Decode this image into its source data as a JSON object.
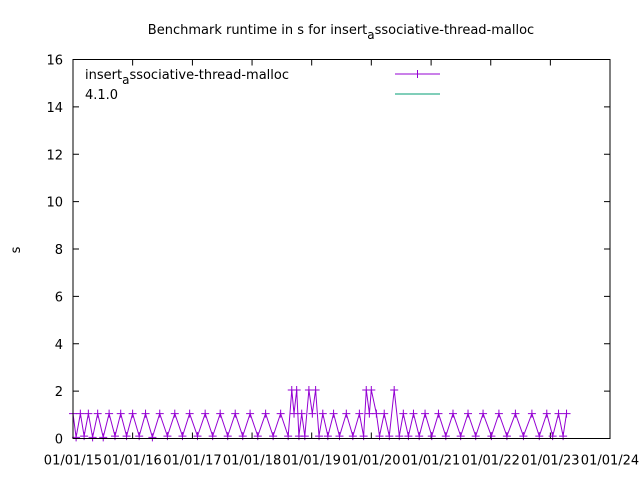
{
  "chart_data": {
    "type": "line",
    "title_main": "Benchmark runtime in s for insert",
    "title_sub": "a",
    "title_rest": "ssociative-thread-malloc",
    "ylabel": "s",
    "ylim": [
      0,
      16
    ],
    "y_ticks": [
      0,
      2,
      4,
      6,
      8,
      10,
      12,
      14,
      16
    ],
    "x_range": [
      "2015-01-01",
      "2024-01-01"
    ],
    "x_ticks": [
      {
        "date": "2015-01-01",
        "label": "01/01/15"
      },
      {
        "date": "2016-01-01",
        "label": "01/01/16"
      },
      {
        "date": "2017-01-01",
        "label": "01/01/17"
      },
      {
        "date": "2018-01-01",
        "label": "01/01/18"
      },
      {
        "date": "2019-01-01",
        "label": "01/01/19"
      },
      {
        "date": "2020-01-01",
        "label": "01/01/20"
      },
      {
        "date": "2021-01-01",
        "label": "01/01/21"
      },
      {
        "date": "2022-01-01",
        "label": "01/01/22"
      },
      {
        "date": "2023-01-01",
        "label": "01/01/23"
      },
      {
        "date": "2024-01-01",
        "label": "01/01/24"
      }
    ],
    "legend_position": "top-left",
    "series": [
      {
        "name_main": "insert",
        "name_sub": "a",
        "name_rest": "ssociative-thread-malloc",
        "color": "#9400d3",
        "style": "linespoints",
        "x": [
          "2015-01-01",
          "2015-01-20",
          "2015-02-15",
          "2015-03-10",
          "2015-04-05",
          "2015-05-01",
          "2015-06-01",
          "2015-07-05",
          "2015-08-10",
          "2015-09-15",
          "2015-10-20",
          "2015-11-25",
          "2016-01-01",
          "2016-02-10",
          "2016-03-20",
          "2016-05-01",
          "2016-06-15",
          "2016-08-01",
          "2016-09-15",
          "2016-11-01",
          "2016-12-15",
          "2017-02-01",
          "2017-03-20",
          "2017-05-05",
          "2017-06-20",
          "2017-08-05",
          "2017-09-20",
          "2017-11-05",
          "2017-12-20",
          "2018-02-05",
          "2018-03-25",
          "2018-05-10",
          "2018-06-25",
          "2018-08-10",
          "2018-09-01",
          "2018-09-15",
          "2018-10-01",
          "2018-10-15",
          "2018-11-01",
          "2018-11-20",
          "2018-12-15",
          "2019-01-05",
          "2019-01-25",
          "2019-02-15",
          "2019-03-10",
          "2019-04-10",
          "2019-05-15",
          "2019-06-20",
          "2019-08-01",
          "2019-09-10",
          "2019-10-20",
          "2019-11-15",
          "2019-12-01",
          "2019-12-20",
          "2020-01-01",
          "2020-02-01",
          "2020-02-20",
          "2020-03-20",
          "2020-04-20",
          "2020-05-20",
          "2020-06-20",
          "2020-07-15",
          "2020-08-15",
          "2020-09-15",
          "2020-10-20",
          "2020-11-25",
          "2021-01-05",
          "2021-02-15",
          "2021-04-01",
          "2021-05-15",
          "2021-07-01",
          "2021-08-15",
          "2021-10-01",
          "2021-11-15",
          "2022-01-05",
          "2022-02-20",
          "2022-04-10",
          "2022-06-01",
          "2022-07-20",
          "2022-09-10",
          "2022-10-25",
          "2022-12-10",
          "2023-01-15",
          "2023-02-20",
          "2023-03-20",
          "2023-04-10"
        ],
        "y": [
          1.05,
          0.05,
          1.05,
          0.1,
          1.05,
          0.05,
          1.05,
          0.05,
          1.05,
          0.1,
          1.05,
          0.1,
          1.05,
          0.1,
          1.05,
          0.05,
          1.05,
          0.1,
          1.05,
          0.1,
          1.05,
          0.1,
          1.05,
          0.1,
          1.05,
          0.1,
          1.05,
          0.1,
          1.05,
          0.1,
          1.05,
          0.1,
          1.05,
          0.1,
          2.05,
          1.05,
          2.05,
          0.1,
          1.05,
          0.1,
          2.05,
          1.05,
          2.05,
          0.1,
          1.05,
          0.1,
          1.05,
          0.1,
          1.05,
          0.1,
          1.05,
          0.1,
          2.05,
          1.05,
          2.05,
          1.05,
          0.1,
          1.05,
          0.1,
          2.05,
          0.1,
          1.05,
          0.1,
          1.05,
          0.1,
          1.05,
          0.1,
          1.05,
          0.1,
          1.05,
          0.1,
          1.05,
          0.1,
          1.05,
          0.1,
          1.05,
          0.1,
          1.05,
          0.1,
          1.05,
          0.1,
          1.05,
          0.1,
          1.05,
          0.1,
          1.05
        ]
      },
      {
        "name": "4.1.0",
        "color": "#009e73",
        "style": "lines",
        "x": [],
        "y": []
      }
    ]
  }
}
